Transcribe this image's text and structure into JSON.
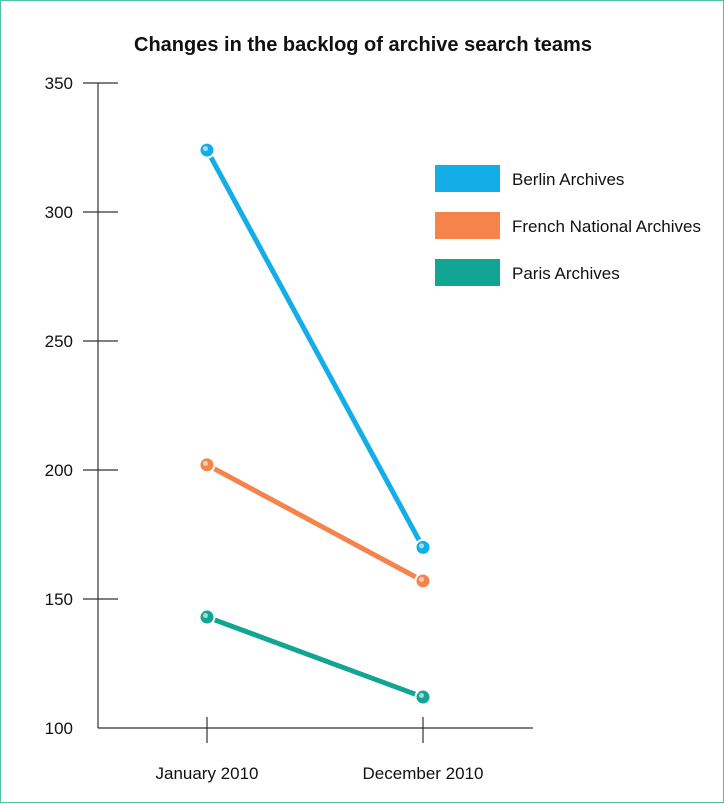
{
  "chart_data": {
    "type": "line",
    "title": "Changes in the backlog of archive search teams",
    "xlabel": "",
    "ylabel": "",
    "categories": [
      "January 2010",
      "December 2010"
    ],
    "ylim": [
      100,
      350
    ],
    "yticks": [
      100,
      150,
      200,
      250,
      300,
      350
    ],
    "grid": false,
    "legend_position": "top-right",
    "series": [
      {
        "name": "Berlin Archives",
        "color": "#13aee8",
        "values": [
          324,
          170
        ]
      },
      {
        "name": "French National Archives",
        "color": "#f5844c",
        "values": [
          202,
          157
        ]
      },
      {
        "name": "Paris Archives",
        "color": "#13a594",
        "values": [
          143,
          112
        ]
      }
    ]
  }
}
